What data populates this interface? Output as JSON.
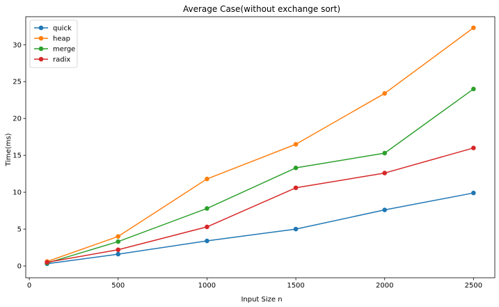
{
  "chart_data": {
    "type": "line",
    "title": "Average Case(without exchange sort)",
    "xlabel": "Input Size n",
    "ylabel": "Time(ms)",
    "x": [
      100,
      500,
      1000,
      1500,
      2000,
      2500
    ],
    "xlim": [
      -20,
      2620
    ],
    "ylim": [
      -1.6,
      33.8
    ],
    "xticks": [
      0,
      500,
      1000,
      1500,
      2000,
      2500
    ],
    "xtick_labels": [
      "0",
      "500",
      "1000",
      "1500",
      "2000",
      "2500"
    ],
    "yticks": [
      0,
      5,
      10,
      15,
      20,
      25,
      30
    ],
    "ytick_labels": [
      "0",
      "5",
      "10",
      "15",
      "20",
      "25",
      "30"
    ],
    "grid": false,
    "legend_position": "top-left",
    "series": [
      {
        "name": "quick",
        "color": "#1f77b4",
        "values": [
          0.3,
          1.6,
          3.4,
          5.0,
          7.6,
          9.9
        ]
      },
      {
        "name": "heap",
        "color": "#ff7f0e",
        "values": [
          0.6,
          4.0,
          11.8,
          16.5,
          23.4,
          32.3
        ]
      },
      {
        "name": "merge",
        "color": "#2ca02c",
        "values": [
          0.4,
          3.3,
          7.8,
          13.3,
          15.3,
          24.0
        ]
      },
      {
        "name": "radix",
        "color": "#d62728",
        "values": [
          0.5,
          2.2,
          5.3,
          10.6,
          12.6,
          16.0
        ]
      }
    ]
  }
}
